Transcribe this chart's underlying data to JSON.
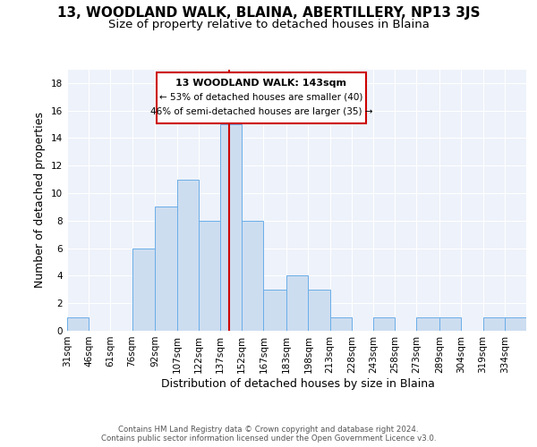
{
  "title": "13, WOODLAND WALK, BLAINA, ABERTILLERY, NP13 3JS",
  "subtitle": "Size of property relative to detached houses in Blaina",
  "xlabel": "Distribution of detached houses by size in Blaina",
  "ylabel": "Number of detached properties",
  "bin_labels": [
    "31sqm",
    "46sqm",
    "61sqm",
    "76sqm",
    "92sqm",
    "107sqm",
    "122sqm",
    "137sqm",
    "152sqm",
    "167sqm",
    "183sqm",
    "198sqm",
    "213sqm",
    "228sqm",
    "243sqm",
    "258sqm",
    "273sqm",
    "289sqm",
    "304sqm",
    "319sqm",
    "334sqm"
  ],
  "bin_edges": [
    31,
    46,
    61,
    76,
    92,
    107,
    122,
    137,
    152,
    167,
    183,
    198,
    213,
    228,
    243,
    258,
    273,
    289,
    304,
    319,
    334,
    349
  ],
  "counts": [
    1,
    0,
    0,
    6,
    9,
    11,
    8,
    15,
    8,
    3,
    4,
    3,
    1,
    0,
    1,
    0,
    1,
    1,
    0,
    1,
    1
  ],
  "bar_color": "#cdddf0",
  "bar_edge_color": "#6aaee8",
  "red_line_x": 143,
  "annotation_title": "13 WOODLAND WALK: 143sqm",
  "annotation_line1": "← 53% of detached houses are smaller (40)",
  "annotation_line2": "46% of semi-detached houses are larger (35) →",
  "footer1": "Contains HM Land Registry data © Crown copyright and database right 2024.",
  "footer2": "Contains public sector information licensed under the Open Government Licence v3.0.",
  "ylim": [
    0,
    19
  ],
  "yticks": [
    0,
    2,
    4,
    6,
    8,
    10,
    12,
    14,
    16,
    18
  ],
  "title_fontsize": 11,
  "subtitle_fontsize": 9.5,
  "axis_label_fontsize": 9,
  "tick_fontsize": 7.5,
  "footer_fontsize": 6.2
}
